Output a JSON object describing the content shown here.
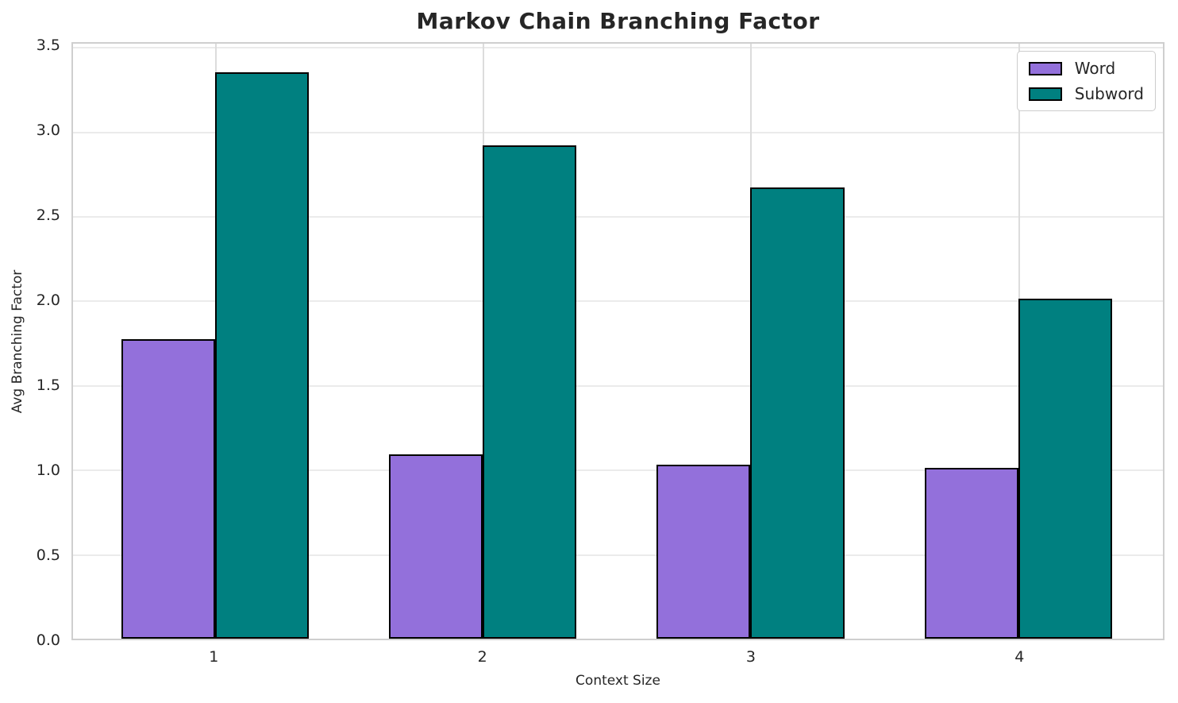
{
  "chart_data": {
    "type": "bar",
    "title": "Markov Chain Branching Factor",
    "xlabel": "Context Size",
    "ylabel": "Avg Branching Factor",
    "categories": [
      "1",
      "2",
      "3",
      "4"
    ],
    "series": [
      {
        "name": "Word",
        "color": "#9370DB",
        "values": [
          1.77,
          1.09,
          1.03,
          1.01
        ]
      },
      {
        "name": "Subword",
        "color": "#008080",
        "values": [
          3.35,
          2.92,
          2.67,
          2.01
        ]
      }
    ],
    "bar_width": 0.35,
    "bar_edge_color": "#000000",
    "xlim": [
      0.47,
      4.54
    ],
    "ylim": [
      0,
      3.52
    ],
    "yticks": [
      0.0,
      0.5,
      1.0,
      1.5,
      2.0,
      2.5,
      3.0,
      3.5
    ],
    "ytick_labels": [
      "0.0",
      "0.5",
      "1.0",
      "1.5",
      "2.0",
      "2.5",
      "3.0",
      "3.5"
    ],
    "grid": true,
    "legend_position": "upper right",
    "colors": {
      "text": "#262626",
      "grid_horizontal": "#ebebeb",
      "grid_vertical": "#dcdcdc",
      "spine": "#cfcfcf",
      "background": "#ffffff"
    }
  }
}
